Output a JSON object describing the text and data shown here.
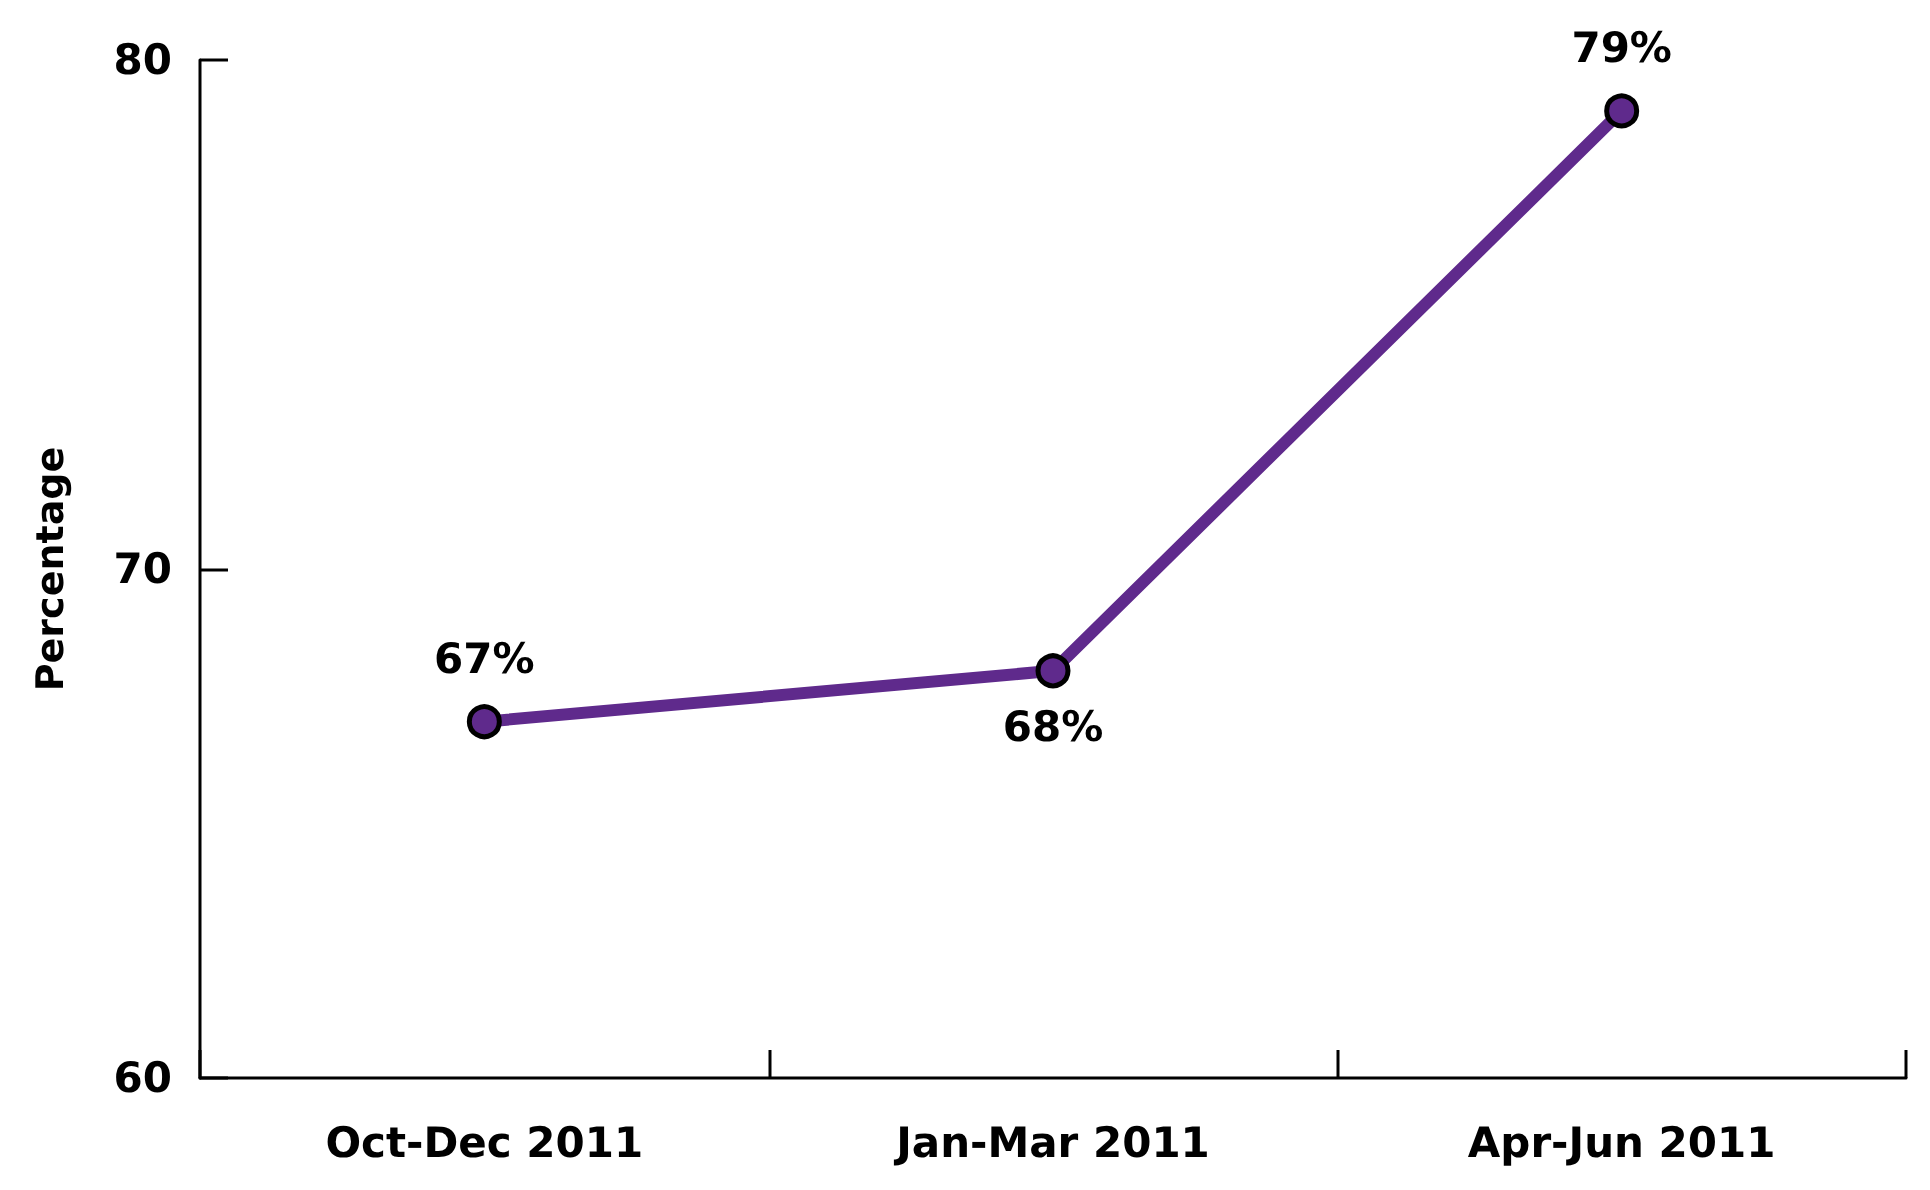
{
  "chart_data": {
    "type": "line",
    "ylabel": "Percentage",
    "categories": [
      "Oct-Dec 2011",
      "Jan-Mar 2011",
      "Apr-Jun 2011"
    ],
    "series": [
      {
        "color": "#5f2a8c",
        "values": [
          67,
          68,
          79
        ],
        "value_labels": [
          "67%",
          "68%",
          "79%"
        ]
      }
    ],
    "ylim": [
      60,
      80
    ],
    "yticks": [
      60,
      70,
      80
    ],
    "grid": false,
    "marker": "circle",
    "line_style": "solid"
  }
}
